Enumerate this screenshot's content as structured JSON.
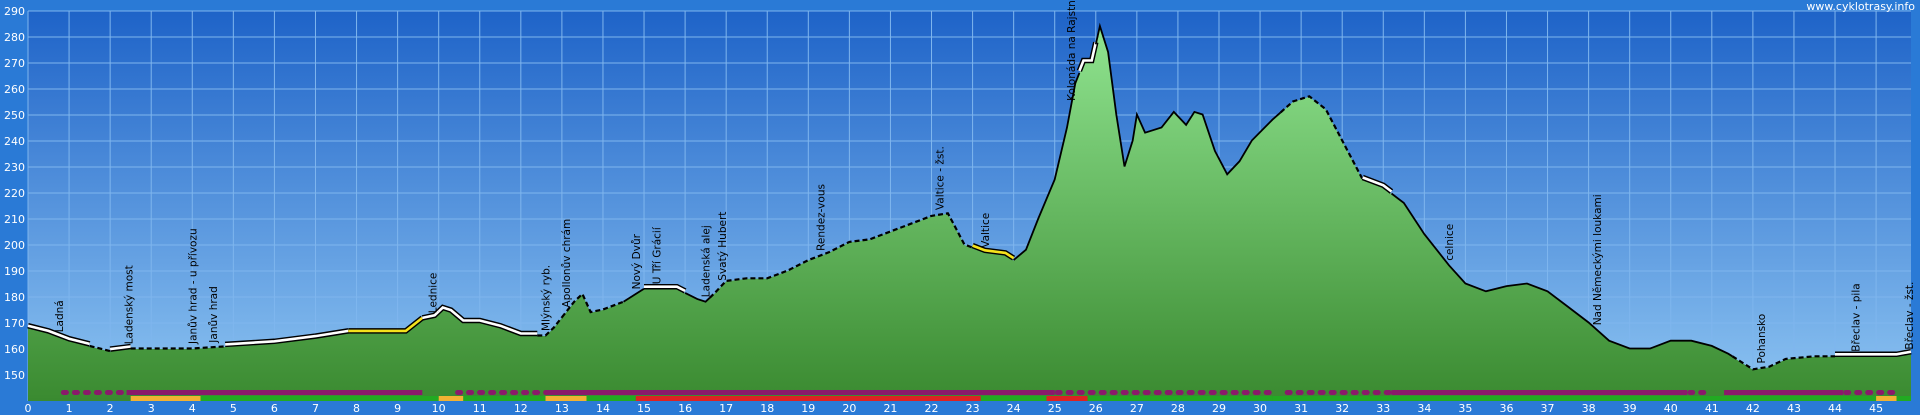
{
  "site_label": "www.cyklotrasy.info",
  "chart_data": {
    "type": "area",
    "title": "",
    "xlabel": "",
    "ylabel": "",
    "xlim": [
      0,
      46
    ],
    "ylim": [
      140,
      290
    ],
    "grid": true,
    "x_ticks": [
      "0",
      "1",
      "2",
      "3",
      "4",
      "5",
      "6",
      "7",
      "8",
      "9",
      "10",
      "11",
      "12",
      "13",
      "14",
      "15",
      "16",
      "17",
      "18",
      "19",
      "20",
      "21",
      "22",
      "23",
      "24",
      "25",
      "26",
      "27",
      "28",
      "29",
      "30",
      "31",
      "32",
      "33",
      "34",
      "35",
      "36",
      "37",
      "38",
      "39",
      "40",
      "41",
      "42",
      "43",
      "44",
      "45"
    ],
    "y_ticks": [
      "150",
      "160",
      "170",
      "180",
      "190",
      "200",
      "210",
      "220",
      "230",
      "240",
      "250",
      "260",
      "270",
      "280",
      "290"
    ],
    "profile": [
      [
        0,
        168
      ],
      [
        0.5,
        166
      ],
      [
        1,
        163
      ],
      [
        1.5,
        161
      ],
      [
        2,
        159
      ],
      [
        2.5,
        160
      ],
      [
        3,
        160
      ],
      [
        4,
        160
      ],
      [
        5,
        161
      ],
      [
        6,
        162
      ],
      [
        7,
        164
      ],
      [
        7.8,
        166
      ],
      [
        8.5,
        166
      ],
      [
        9.2,
        166
      ],
      [
        9.6,
        171
      ],
      [
        9.9,
        172
      ],
      [
        10.1,
        175
      ],
      [
        10.3,
        174
      ],
      [
        10.6,
        170
      ],
      [
        11,
        170
      ],
      [
        11.5,
        168
      ],
      [
        12,
        165
      ],
      [
        12.6,
        165
      ],
      [
        12.8,
        168
      ],
      [
        13.1,
        174
      ],
      [
        13.3,
        178
      ],
      [
        13.5,
        181
      ],
      [
        13.7,
        174
      ],
      [
        14,
        175
      ],
      [
        14.5,
        178
      ],
      [
        15,
        183
      ],
      [
        15.5,
        183
      ],
      [
        15.8,
        183
      ],
      [
        16.3,
        179
      ],
      [
        16.5,
        178
      ],
      [
        16.7,
        181
      ],
      [
        17,
        186
      ],
      [
        17.5,
        187
      ],
      [
        18,
        187
      ],
      [
        18.5,
        190
      ],
      [
        19,
        194
      ],
      [
        19.5,
        197
      ],
      [
        20,
        201
      ],
      [
        20.5,
        202
      ],
      [
        21,
        205
      ],
      [
        21.5,
        208
      ],
      [
        22,
        211
      ],
      [
        22.4,
        212
      ],
      [
        22.6,
        206
      ],
      [
        22.8,
        200
      ],
      [
        23.3,
        197
      ],
      [
        23.8,
        196
      ],
      [
        24,
        194
      ],
      [
        24.3,
        198
      ],
      [
        24.6,
        210
      ],
      [
        25,
        225
      ],
      [
        25.3,
        245
      ],
      [
        25.5,
        262
      ],
      [
        25.7,
        270
      ],
      [
        25.9,
        270
      ],
      [
        26.1,
        284
      ],
      [
        26.3,
        274
      ],
      [
        26.5,
        250
      ],
      [
        26.7,
        230
      ],
      [
        26.9,
        240
      ],
      [
        27,
        250
      ],
      [
        27.2,
        243
      ],
      [
        27.6,
        245
      ],
      [
        27.9,
        251
      ],
      [
        28.2,
        246
      ],
      [
        28.4,
        251
      ],
      [
        28.6,
        250
      ],
      [
        28.9,
        236
      ],
      [
        29.2,
        227
      ],
      [
        29.5,
        232
      ],
      [
        29.8,
        240
      ],
      [
        30.3,
        248
      ],
      [
        30.8,
        255
      ],
      [
        31.2,
        257
      ],
      [
        31.6,
        252
      ],
      [
        32,
        240
      ],
      [
        32.5,
        225
      ],
      [
        33,
        222
      ],
      [
        33.5,
        216
      ],
      [
        34,
        204
      ],
      [
        34.6,
        192
      ],
      [
        35,
        185
      ],
      [
        35.5,
        182
      ],
      [
        36,
        184
      ],
      [
        36.5,
        185
      ],
      [
        37,
        182
      ],
      [
        37.5,
        176
      ],
      [
        38,
        170
      ],
      [
        38.5,
        163
      ],
      [
        39,
        160
      ],
      [
        39.5,
        160
      ],
      [
        40,
        163
      ],
      [
        40.5,
        163
      ],
      [
        41,
        161
      ],
      [
        41.4,
        158
      ],
      [
        41.7,
        155
      ],
      [
        42,
        152
      ],
      [
        42.4,
        153
      ],
      [
        42.8,
        156
      ],
      [
        43.5,
        157
      ],
      [
        44.5,
        157
      ],
      [
        45,
        157
      ],
      [
        45.5,
        157
      ],
      [
        46,
        158
      ],
      [
        46.5,
        158
      ],
      [
        47,
        158
      ]
    ],
    "track_segments": [
      {
        "from": 0,
        "to": 1.5,
        "style": "white"
      },
      {
        "from": 1.5,
        "to": 2.0,
        "style": "dash"
      },
      {
        "from": 2.0,
        "to": 2.5,
        "style": "white"
      },
      {
        "from": 2.5,
        "to": 4.8,
        "style": "dash"
      },
      {
        "from": 4.8,
        "to": 7.8,
        "style": "white"
      },
      {
        "from": 7.8,
        "to": 9.6,
        "style": "yellow"
      },
      {
        "from": 9.6,
        "to": 10.0,
        "style": "white"
      },
      {
        "from": 10.0,
        "to": 12.4,
        "style": "white"
      },
      {
        "from": 12.4,
        "to": 13.0,
        "style": "dash"
      },
      {
        "from": 13.0,
        "to": 14.5,
        "style": "dash"
      },
      {
        "from": 14.5,
        "to": 15.0,
        "style": "solid"
      },
      {
        "from": 15.0,
        "to": 16.0,
        "style": "white"
      },
      {
        "from": 16.0,
        "to": 16.6,
        "style": "solid"
      },
      {
        "from": 16.6,
        "to": 23.0,
        "style": "dash"
      },
      {
        "from": 23.0,
        "to": 24.0,
        "style": "yellow"
      },
      {
        "from": 24.0,
        "to": 25.6,
        "style": "solid"
      },
      {
        "from": 25.6,
        "to": 26.0,
        "style": "white"
      },
      {
        "from": 26.0,
        "to": 30.5,
        "style": "solid"
      },
      {
        "from": 30.5,
        "to": 32.5,
        "style": "dash"
      },
      {
        "from": 32.5,
        "to": 33.2,
        "style": "white"
      },
      {
        "from": 33.2,
        "to": 41.5,
        "style": "solid"
      },
      {
        "from": 41.5,
        "to": 44.0,
        "style": "dash"
      },
      {
        "from": 44.0,
        "to": 47.0,
        "style": "white"
      }
    ],
    "waypoints": [
      {
        "name": "Ladná",
        "km": 0.75
      },
      {
        "name": "Ladenský most",
        "km": 2.45
      },
      {
        "name": "Janův hrad - u přívozu",
        "km": 4.0
      },
      {
        "name": "Janův hrad",
        "km": 4.5
      },
      {
        "name": "Lednice",
        "km": 9.85
      },
      {
        "name": "Mlýnský ryb.",
        "km": 12.6
      },
      {
        "name": "Apollonův chrám",
        "km": 13.1
      },
      {
        "name": "Nový Dvůr",
        "km": 14.8
      },
      {
        "name": "U Tří Grácií",
        "km": 15.3
      },
      {
        "name": "Ladenská alej",
        "km": 16.5
      },
      {
        "name": "Svatý Hubert",
        "km": 16.9
      },
      {
        "name": "Rendez-vous",
        "km": 19.3
      },
      {
        "name": "Valtice - žst.",
        "km": 22.2
      },
      {
        "name": "Valtice",
        "km": 23.3
      },
      {
        "name": "Kolonáda na Rajstně",
        "km": 25.4
      },
      {
        "name": "celnice",
        "km": 34.6
      },
      {
        "name": "Nad Německými loukami",
        "km": 38.2
      },
      {
        "name": "Pohansko",
        "km": 42.2
      },
      {
        "name": "Břeclav - pila",
        "km": 44.5
      },
      {
        "name": "Břeclav - žst.",
        "km": 46.1
      }
    ],
    "surface_bands": [
      {
        "row": "top",
        "from": 0.8,
        "to": 2.4,
        "color": "#8a1a6a",
        "dotted": true
      },
      {
        "row": "top",
        "from": 2.4,
        "to": 9.6,
        "color": "#8a1a6a",
        "dotted": false
      },
      {
        "row": "top",
        "from": 10.4,
        "to": 12.7,
        "color": "#8a1a6a",
        "dotted": true
      },
      {
        "row": "top",
        "from": 12.7,
        "to": 25.0,
        "color": "#8a1a6a",
        "dotted": false
      },
      {
        "row": "top",
        "from": 25.0,
        "to": 30.3,
        "color": "#8a1a6a",
        "dotted": true
      },
      {
        "row": "top",
        "from": 30.6,
        "to": 33.2,
        "color": "#8a1a6a",
        "dotted": true
      },
      {
        "row": "top",
        "from": 33.2,
        "to": 40.4,
        "color": "#8a1a6a",
        "dotted": false
      },
      {
        "row": "top",
        "from": 40.4,
        "to": 40.8,
        "color": "#8a1a6a",
        "dotted": true
      },
      {
        "row": "top",
        "from": 41.3,
        "to": 44.2,
        "color": "#8a1a6a",
        "dotted": false
      },
      {
        "row": "top",
        "from": 44.2,
        "to": 45.4,
        "color": "#8a1a6a",
        "dotted": true
      },
      {
        "row": "bottom",
        "from": 2.5,
        "to": 4.2,
        "color": "#f2b233"
      },
      {
        "row": "bottom",
        "from": 4.2,
        "to": 10.0,
        "color": "#22aa22"
      },
      {
        "row": "bottom",
        "from": 10.0,
        "to": 10.6,
        "color": "#f2b233"
      },
      {
        "row": "bottom",
        "from": 10.6,
        "to": 12.6,
        "color": "#22aa22"
      },
      {
        "row": "bottom",
        "from": 12.6,
        "to": 13.6,
        "color": "#f2b233"
      },
      {
        "row": "bottom",
        "from": 13.6,
        "to": 14.8,
        "color": "#22aa22"
      },
      {
        "row": "bottom",
        "from": 14.8,
        "to": 23.2,
        "color": "#dd2222"
      },
      {
        "row": "bottom",
        "from": 23.2,
        "to": 24.8,
        "color": "#22aa22"
      },
      {
        "row": "bottom",
        "from": 24.8,
        "to": 25.8,
        "color": "#dd2222"
      },
      {
        "row": "bottom",
        "from": 25.8,
        "to": 30.3,
        "color": "#22aa22"
      },
      {
        "row": "bottom",
        "from": 30.3,
        "to": 45.0,
        "color": "#22aa22"
      },
      {
        "row": "bottom",
        "from": 45.0,
        "to": 45.5,
        "color": "#f2b233"
      },
      {
        "row": "bottom",
        "from": 45.5,
        "to": 46.2,
        "color": "#22aa22"
      }
    ],
    "colors": {
      "frame": "#2a7ad6",
      "plot_bg_top": "#1e63c8",
      "plot_bg_bottom": "#8ec5f2",
      "grid": "#7fb6ee",
      "area_top": "#90e490",
      "area_bottom": "#3a8a30"
    }
  }
}
